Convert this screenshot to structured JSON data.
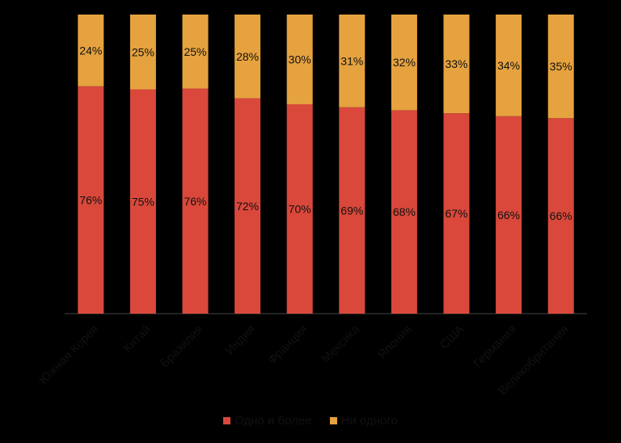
{
  "chart_data": {
    "type": "bar",
    "stacked": true,
    "percent": true,
    "categories": [
      "Южная Корея",
      "Китай",
      "Бразилия",
      "Индия",
      "Франция",
      "Мексика",
      "Япония",
      "США",
      "Германия",
      "Великобритания"
    ],
    "series": [
      {
        "name": "Одно и более",
        "color": "#D9483B",
        "values": [
          76,
          75,
          76,
          72,
          70,
          69,
          68,
          67,
          66,
          66
        ]
      },
      {
        "name": "Ни одного",
        "color": "#E5A23F",
        "values": [
          24,
          25,
          25,
          28,
          30,
          31,
          32,
          33,
          34,
          35
        ]
      }
    ],
    "label_suffix": "%",
    "ylim": [
      0,
      100
    ],
    "grid": false,
    "legend_position": "bottom",
    "background": "#000000",
    "label_color": "#111111"
  }
}
